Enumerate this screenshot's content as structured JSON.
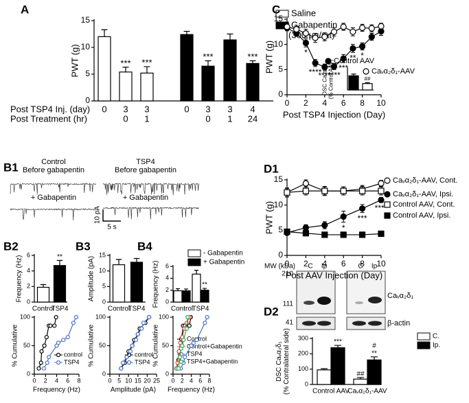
{
  "chart_data": [
    {
      "type": "bar",
      "panel": "A",
      "ylabel": [
        "PWT (g)"
      ],
      "ylim": [
        0,
        15
      ],
      "yticks": [
        0,
        5,
        10,
        15
      ],
      "categories": [
        "0",
        "3",
        "3",
        "0",
        "3",
        "3",
        "4"
      ],
      "categories2": [
        null,
        "0",
        "1",
        null,
        "0",
        "1",
        "24"
      ],
      "category_titles": [
        "Post TSP4 Inj. (day)",
        "Post Treatment (hr)"
      ],
      "legend": "outside right",
      "legend_note": "(300 μg/rat)",
      "series": [
        {
          "name": "Saline",
          "color": "#ffffff",
          "values": [
            12,
            5.4,
            5.2,
            null,
            null,
            null,
            null
          ],
          "errors": [
            1.3,
            0.9,
            1.2,
            null,
            null,
            null,
            null
          ],
          "stars": [
            null,
            [
              "***"
            ],
            [
              "***"
            ],
            null,
            null,
            null,
            null
          ]
        },
        {
          "name": "Gabapentin",
          "color": "#000000",
          "values": [
            null,
            null,
            null,
            12.4,
            6.5,
            11.4,
            7
          ],
          "errors": [
            null,
            null,
            null,
            0.6,
            1,
            1.1,
            0.5
          ],
          "stars": [
            null,
            null,
            null,
            null,
            [
              "***"
            ],
            null,
            [
              "***"
            ]
          ]
        }
      ]
    },
    {
      "type": "line",
      "panel": "C",
      "ylabel": [
        "PWT (g)"
      ],
      "xlabel": "Post TSP4 Injection (Day)",
      "xlim": [
        0,
        10
      ],
      "xticks": [
        0,
        2,
        4,
        6,
        8,
        10
      ],
      "ylim": [
        0,
        15
      ],
      "yticks": [
        0,
        5,
        10,
        15
      ],
      "legend": "lower right",
      "x": [
        0,
        1,
        2,
        3,
        4,
        5,
        6,
        7,
        8,
        9,
        10
      ],
      "series": [
        {
          "name": "Control AAV",
          "color": "#000000",
          "marker": "circle",
          "filled": true,
          "values": [
            13.3,
            12.2,
            10.3,
            6.3,
            5.5,
            5.6,
            7.2,
            9.2,
            9.6,
            11.5,
            12.6
          ],
          "errors": [
            0.6,
            0.6,
            0.8,
            0.7,
            0.6,
            0.6,
            0.8,
            0.8,
            0.7,
            0.7,
            0.8
          ],
          "stars": [
            null,
            null,
            [
              "*"
            ],
            [
              "****"
            ],
            [
              "****"
            ],
            [
              "****"
            ],
            [
              "***"
            ],
            [
              "**"
            ],
            [
              "*"
            ],
            null,
            null
          ]
        },
        {
          "name": "Caᵥα₂δ₁-AAV",
          "color": "#000000",
          "marker": "circle",
          "filled": false,
          "values": [
            13.5,
            13,
            12.2,
            11.3,
            11.5,
            12.5,
            13.5,
            12.5,
            13.3,
            13.2,
            13.6
          ],
          "errors": [
            0.6,
            0.6,
            0.8,
            0.9,
            0.8,
            0.8,
            0.7,
            0.8,
            0.7,
            0.7,
            0.6
          ]
        }
      ]
    },
    {
      "type": "bar",
      "ylabel": [
        "DSC Caᵥα₂δ₁",
        "(% Control AAV)"
      ],
      "ylim": [
        0,
        150
      ],
      "categories": [
        null,
        null
      ],
      "series": [
        {
          "colors": [
            "#000000",
            "#ffffff"
          ],
          "values": [
            100,
            45
          ],
          "errors": [
            12,
            6
          ],
          "stars": [
            null,
            [
              "##"
            ]
          ]
        }
      ]
    },
    {
      "type": "bar",
      "panel": "B2",
      "ylabel": [
        "Frequency (Hz)"
      ],
      "ylim": [
        0,
        6
      ],
      "yticks": [
        0,
        2,
        4,
        6
      ],
      "categories": [
        "Control",
        "TSP4"
      ],
      "series": [
        {
          "colors": [
            "#ffffff",
            "#000000"
          ],
          "values": [
            1.9,
            4.7
          ],
          "errors": [
            0.35,
            0.65
          ],
          "stars": [
            null,
            [
              "**"
            ]
          ]
        }
      ]
    },
    {
      "type": "bar",
      "panel": "B3",
      "ylabel": [
        "Amplitude (pA)"
      ],
      "ylim": [
        0,
        15
      ],
      "yticks": [
        0,
        5,
        10,
        15
      ],
      "categories": [
        "Control",
        "TSP4"
      ],
      "series": [
        {
          "colors": [
            "#ffffff",
            "#000000"
          ],
          "values": [
            12,
            12.8
          ],
          "errors": [
            1.7,
            1.2
          ]
        }
      ]
    },
    {
      "type": "bar",
      "panel": "B4",
      "ylabel": [
        "Frequency (Hz)"
      ],
      "ylim": [
        0,
        6
      ],
      "yticks": [
        0,
        2,
        4,
        6
      ],
      "categories": [
        "Control",
        "TSP4"
      ],
      "legend": "outside top",
      "series": [
        {
          "name": "- Gabapentin",
          "color": "#ffffff",
          "values": [
            1.9,
            4.7
          ],
          "errors": [
            0.35,
            0.65
          ]
        },
        {
          "name": "+ Gabapentin",
          "color": "#000000",
          "values": [
            1.9,
            2.0
          ],
          "errors": [
            0.3,
            0.3
          ],
          "stars": [
            null,
            [
              "**"
            ]
          ]
        }
      ]
    },
    {
      "type": "line",
      "ylabel": [
        "% Cumulative"
      ],
      "xlabel": "Frequency (Hz)",
      "xlim": [
        0,
        8
      ],
      "xticks": [
        0,
        2,
        4,
        6,
        8
      ],
      "ylim": [
        0,
        100
      ],
      "yticks": [
        0,
        50,
        100
      ],
      "legend": "lower right",
      "series": [
        {
          "name": "control",
          "color": "#000000",
          "marker": "circle",
          "filled": false,
          "x": [
            0.8,
            1.2,
            1.3,
            1.8,
            2.2,
            2.6,
            2.9,
            3.6,
            3.9
          ],
          "values": [
            10,
            20,
            40,
            50,
            65,
            85,
            85,
            85,
            100
          ]
        },
        {
          "name": "TSP4",
          "color": "#4a73c4",
          "marker": "circle",
          "filled": false,
          "x": [
            1.7,
            2.3,
            2.6,
            4.0,
            4.3,
            5.2,
            6.0,
            7.0,
            7.5
          ],
          "values": [
            10,
            20,
            30,
            50,
            55,
            60,
            65,
            90,
            100
          ]
        }
      ]
    },
    {
      "type": "line",
      "ylabel": [
        "% Cumulative"
      ],
      "xlabel": "Amplitude (pA)",
      "xlim": [
        0,
        25
      ],
      "xticks": [
        0,
        5,
        10,
        15,
        20,
        25
      ],
      "ylim": [
        0,
        100
      ],
      "yticks": [
        0,
        50,
        100
      ],
      "legend": "lower right",
      "series": [
        {
          "name": "control",
          "color": "#000000",
          "marker": "circle",
          "filled": false,
          "x": [
            6,
            8,
            9,
            10,
            12,
            13,
            15,
            16,
            19,
            21
          ],
          "values": [
            10,
            20,
            30,
            40,
            50,
            60,
            70,
            80,
            90,
            100
          ]
        },
        {
          "name": "TSP4",
          "color": "#4a73c4",
          "marker": "circle",
          "filled": false,
          "x": [
            6,
            7,
            9,
            11,
            12,
            14,
            15,
            17,
            18,
            21
          ],
          "values": [
            10,
            20,
            30,
            40,
            50,
            60,
            70,
            80,
            90,
            100
          ]
        }
      ]
    },
    {
      "type": "line",
      "ylabel": [
        "% Cumulative"
      ],
      "xlabel": "Frequency (Hz)",
      "xlim": [
        0,
        8
      ],
      "xticks": [
        0,
        2,
        4,
        6,
        8
      ],
      "ylim": [
        0,
        100
      ],
      "yticks": [
        0,
        50,
        100
      ],
      "legend": "lower right",
      "series": [
        {
          "name": "Control",
          "color": "#000000",
          "marker": "circle",
          "filled": false,
          "x": [
            0.8,
            1.2,
            1.3,
            1.8,
            2.2,
            2.6,
            3.6,
            3.9
          ],
          "values": [
            10,
            25,
            40,
            55,
            85,
            85,
            85,
            100
          ]
        },
        {
          "name": "Control+Gabapentin",
          "color": "#e0403a",
          "marker": "circle",
          "filled": false,
          "x": [
            0.7,
            1.0,
            1.3,
            1.6,
            2.0,
            2.5,
            3.0,
            3.6
          ],
          "values": [
            10,
            20,
            40,
            55,
            65,
            80,
            90,
            100
          ]
        },
        {
          "name": "TSP4",
          "color": "#4a73c4",
          "marker": "circle",
          "filled": false,
          "x": [
            1.7,
            2.3,
            2.6,
            4.0,
            4.5,
            5.2,
            7.0,
            7.5
          ],
          "values": [
            10,
            20,
            30,
            50,
            55,
            60,
            90,
            100
          ]
        },
        {
          "name": "TSP4+Gabapentin",
          "color": "#2fa84f",
          "marker": "circle",
          "filled": false,
          "x": [
            0.8,
            1.2,
            1.5,
            1.8,
            2.0,
            2.3,
            3.0,
            3.2
          ],
          "values": [
            10,
            10,
            30,
            45,
            50,
            60,
            80,
            100
          ]
        }
      ]
    },
    {
      "type": "line",
      "panel": "D1",
      "ylabel": [
        "PWT (g)"
      ],
      "xlabel": "Post AAV Injection (Day)",
      "xlim": [
        0,
        10
      ],
      "xticks": [
        0,
        2,
        4,
        6,
        8,
        10
      ],
      "ylim": [
        0,
        15
      ],
      "yticks": [
        0,
        5,
        10,
        15
      ],
      "legend": "outside right",
      "x": [
        0,
        2,
        4,
        6,
        8,
        10
      ],
      "series": [
        {
          "name": "Caᵥα₂δ₁-AAV, Cont.",
          "color": "#000000",
          "marker": "circle",
          "filled": false,
          "values": [
            12.5,
            14.3,
            12.8,
            12.8,
            13.2,
            14.3
          ],
          "errors": [
            0.8,
            0.7,
            0.9,
            0.8,
            0.7,
            0.6
          ]
        },
        {
          "name": "Caᵥα₂δ₁-AAV, Ipsi.",
          "color": "#000000",
          "marker": "circle",
          "filled": true,
          "values": [
            4.5,
            5.5,
            6,
            7.7,
            9.3,
            11
          ],
          "errors": [
            0.5,
            0.6,
            0.7,
            1.1,
            0.8,
            0.5
          ],
          "stars": [
            null,
            null,
            null,
            [
              "*"
            ],
            [
              "***"
            ],
            [
              "****"
            ]
          ]
        },
        {
          "name": "Control AAV, Cont.",
          "color": "#000000",
          "marker": "square",
          "filled": false,
          "values": [
            12.5,
            12.8,
            12.8,
            12.8,
            12.8,
            12.8
          ],
          "errors": [
            0.9,
            0.8,
            0.8,
            0.8,
            0.8,
            0.8
          ]
        },
        {
          "name": "Control AAV, Ipsi.",
          "color": "#000000",
          "marker": "square",
          "filled": true,
          "values": [
            4.7,
            4.4,
            4.1,
            4.1,
            4.1,
            4.3
          ],
          "errors": [
            0.3,
            0.2,
            0.2,
            0.2,
            0.2,
            0.2
          ]
        }
      ]
    },
    {
      "type": "bar",
      "panel": "D2",
      "ylabel": [
        "DSC Caᵥα₂δ₁",
        "(% Contralateral side)"
      ],
      "ylim": [
        0,
        300
      ],
      "yticks": [
        0,
        100,
        200,
        300
      ],
      "categories": [
        "Control AAV",
        "Caᵥα₂δ₁-AAV"
      ],
      "legend": "outside right",
      "series": [
        {
          "name": "C.",
          "color": "#ffffff",
          "values": [
            95,
            35
          ],
          "errors": [
            8,
            10
          ],
          "stars": [
            null,
            [
              "##"
            ]
          ]
        },
        {
          "name": "Ip.",
          "color": "#000000",
          "values": [
            240,
            160
          ],
          "errors": [
            15,
            20
          ],
          "stars": [
            [
              "***"
            ],
            [
              "**",
              "#"
            ]
          ]
        }
      ]
    }
  ],
  "panel_b1": {
    "label": "B1",
    "left_title": "Control",
    "right_title": "TSP4",
    "before": [
      "Before gabapentin",
      "Before gabapentin"
    ],
    "after": [
      "+ Gabapentin",
      "+ Gabapentin"
    ],
    "scale_y": "10 pA",
    "scale_x": "5 s"
  },
  "panel_d2_blot": {
    "mw_title": "MW (kDa)",
    "mw": [
      "210",
      "111",
      "41"
    ],
    "lanes": [
      "C",
      "Ip",
      "C",
      "Ip"
    ],
    "bands": [
      "Caᵥα₂δ₁",
      "β-actin"
    ]
  }
}
